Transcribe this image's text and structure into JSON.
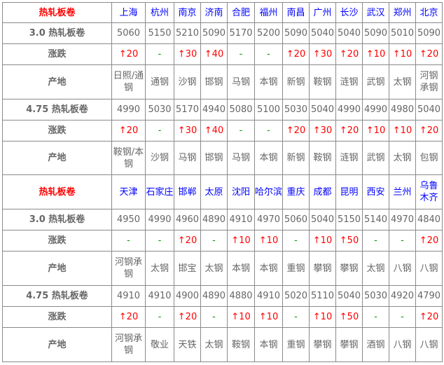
{
  "colors": {
    "city": "#0000ff",
    "title": "#ff0000",
    "up": "#ff0000",
    "flat": "#009900",
    "text": "#666666"
  },
  "sections": [
    {
      "title": "热轧板卷",
      "cities": [
        "上海",
        "杭州",
        "南京",
        "济南",
        "合肥",
        "福州",
        "南昌",
        "广州",
        "长沙",
        "武汉",
        "郑州",
        "北京"
      ],
      "rows": [
        {
          "label": "3.0 热轧板卷",
          "type": "price",
          "values": [
            "5060",
            "5150",
            "5210",
            "5090",
            "5170",
            "5200",
            "5090",
            "5040",
            "5040",
            "5090",
            "5010",
            "5090"
          ]
        },
        {
          "label": "涨跌",
          "type": "change",
          "values": [
            "↑20",
            "-",
            "↑30",
            "↑40",
            "-",
            "-",
            "↑20",
            "↑30",
            "↑20",
            "↑10",
            "↑10",
            "↑20"
          ]
        },
        {
          "label": "产地",
          "type": "origin",
          "values": [
            "日照/通钢",
            "通钢",
            "沙钢",
            "邯钢",
            "马钢",
            "本钢",
            "新钢",
            "鞍钢",
            "涟钢",
            "武钢",
            "太钢",
            "河钢承钢"
          ]
        },
        {
          "label": "4.75 热轧板卷",
          "type": "price",
          "values": [
            "4990",
            "5030",
            "5170",
            "4940",
            "5080",
            "5100",
            "5030",
            "5040",
            "4990",
            "4990",
            "4980",
            "5040"
          ]
        },
        {
          "label": "涨跌",
          "type": "change",
          "values": [
            "↑20",
            "-",
            "↑30",
            "↑40",
            "-",
            "-",
            "↑20",
            "↑30",
            "↑20",
            "↑10",
            "↑10",
            "↑20"
          ]
        },
        {
          "label": "产地",
          "type": "origin",
          "values": [
            "鞍钢/本钢",
            "沙钢",
            "马钢",
            "邯钢",
            "马钢",
            "本钢",
            "新钢",
            "鞍钢",
            "涟钢",
            "武钢",
            "太钢",
            "包钢"
          ]
        }
      ]
    },
    {
      "title": "热轧板卷",
      "cities": [
        "天津",
        "石家庄",
        "邯郸",
        "太原",
        "沈阳",
        "哈尔滨",
        "重庆",
        "成都",
        "昆明",
        "西安",
        "兰州",
        "乌鲁木齐"
      ],
      "rows": [
        {
          "label": "3.0 热轧板卷",
          "type": "price",
          "values": [
            "4950",
            "4990",
            "4960",
            "4890",
            "4910",
            "4970",
            "5060",
            "5040",
            "5150",
            "5140",
            "4970",
            "4840"
          ]
        },
        {
          "label": "涨跌",
          "type": "change",
          "values": [
            "-",
            "-",
            "↑20",
            "-",
            "↑10",
            "↑10",
            "-",
            "↑10",
            "↑50",
            "-",
            "-",
            "↑20"
          ]
        },
        {
          "label": "产地",
          "type": "origin",
          "values": [
            "河钢承钢",
            "太钢",
            "邯宝",
            "太钢",
            "本钢",
            "本钢",
            "重钢",
            "攀钢",
            "攀钢",
            "太钢",
            "八钢",
            "八钢"
          ]
        },
        {
          "label": "4.75 热轧板卷",
          "type": "price",
          "values": [
            "4910",
            "4910",
            "4900",
            "4890",
            "4880",
            "4910",
            "5020",
            "5110",
            "5040",
            "5030",
            "4920",
            "4790"
          ]
        },
        {
          "label": "涨跌",
          "type": "change",
          "values": [
            "↑20",
            "-",
            "↑20",
            "-",
            "↑10",
            "↑10",
            "-",
            "↑10",
            "↑50",
            "-",
            "-",
            "↑20"
          ]
        },
        {
          "label": "产地",
          "type": "origin",
          "values": [
            "河钢承钢",
            "敬业",
            "天铁",
            "太钢",
            "鞍钢",
            "本钢",
            "重钢",
            "攀钢",
            "攀钢",
            "酒钢",
            "八钢",
            "八钢"
          ]
        }
      ]
    }
  ]
}
